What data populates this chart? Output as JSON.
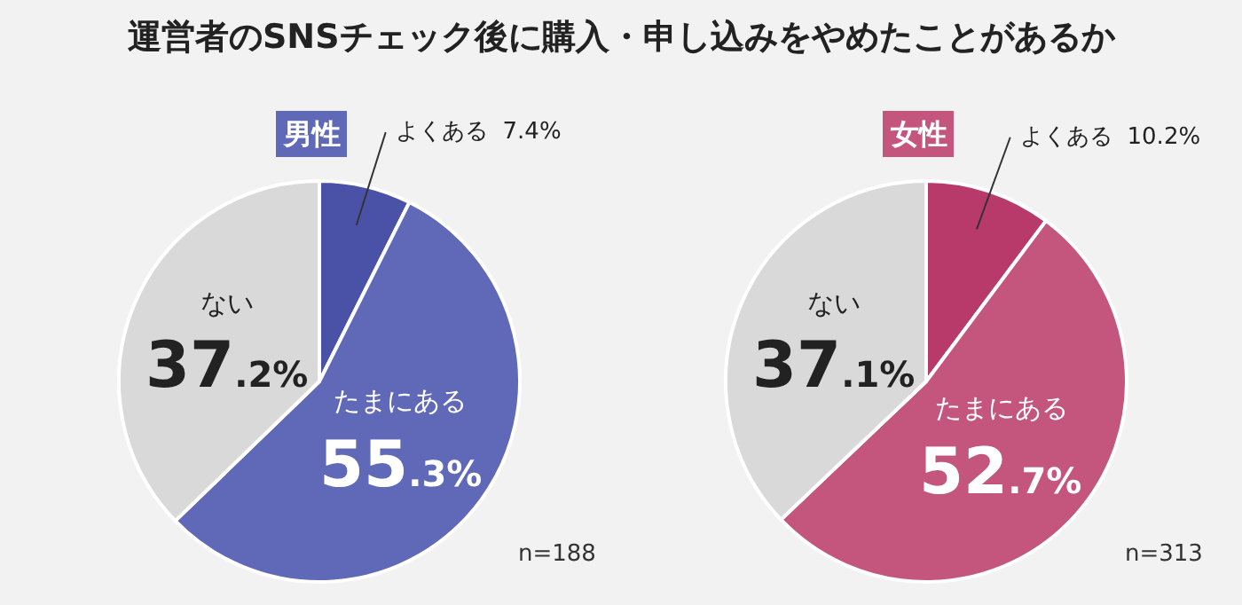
{
  "chart_data": [
    {
      "type": "pie",
      "title": "運営者のSNSチェック後に購入・申し込みをやめたことがあるか",
      "subtitle": "男性",
      "categories": [
        "よくある",
        "たまにある",
        "ない"
      ],
      "values": [
        7.4,
        55.3,
        37.2
      ],
      "colors": [
        "#4a52a8",
        "#6068b8",
        "#d9d9d9"
      ],
      "value_labels": [
        "7.4%",
        "55.3%",
        "37.2%"
      ],
      "annotations": [
        "n=188"
      ]
    },
    {
      "type": "pie",
      "subtitle": "女性",
      "categories": [
        "よくある",
        "たまにある",
        "ない"
      ],
      "values": [
        10.2,
        52.7,
        37.1
      ],
      "colors": [
        "#b83a6a",
        "#c4557c",
        "#d9d9d9"
      ],
      "value_labels": [
        "10.2%",
        "52.7%",
        "37.1%"
      ],
      "annotations": [
        "n=313"
      ]
    }
  ]
}
